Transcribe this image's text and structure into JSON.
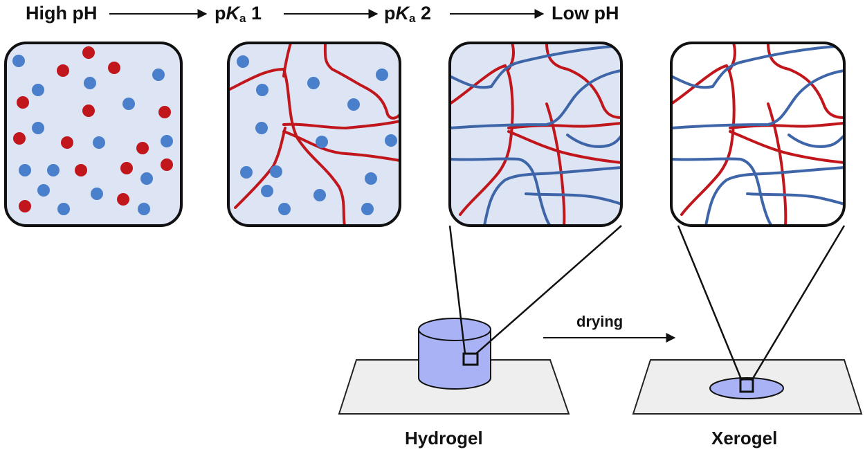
{
  "header": {
    "stage1_label": "High pH",
    "stage2_prefix": "p",
    "stage2_italic": "K",
    "stage2_sub": "a",
    "stage2_num": " 1",
    "stage3_prefix": "p",
    "stage3_italic": "K",
    "stage3_sub": "a",
    "stage3_num": " 2",
    "stage4_label": "Low pH"
  },
  "process": {
    "arrow_label": "drying"
  },
  "samples": {
    "hydrogel_label": "Hydrogel",
    "xerogel_label": "Xerogel"
  },
  "colors": {
    "component_red": "#c0161c",
    "component_blue": "#4a7fcc",
    "blue_fiber": "#3d65a8",
    "solution_bg": "#dde4f3",
    "gel_fill": "#a8b2f4",
    "surface_fill": "#eeeeee",
    "outline": "#111111"
  }
}
